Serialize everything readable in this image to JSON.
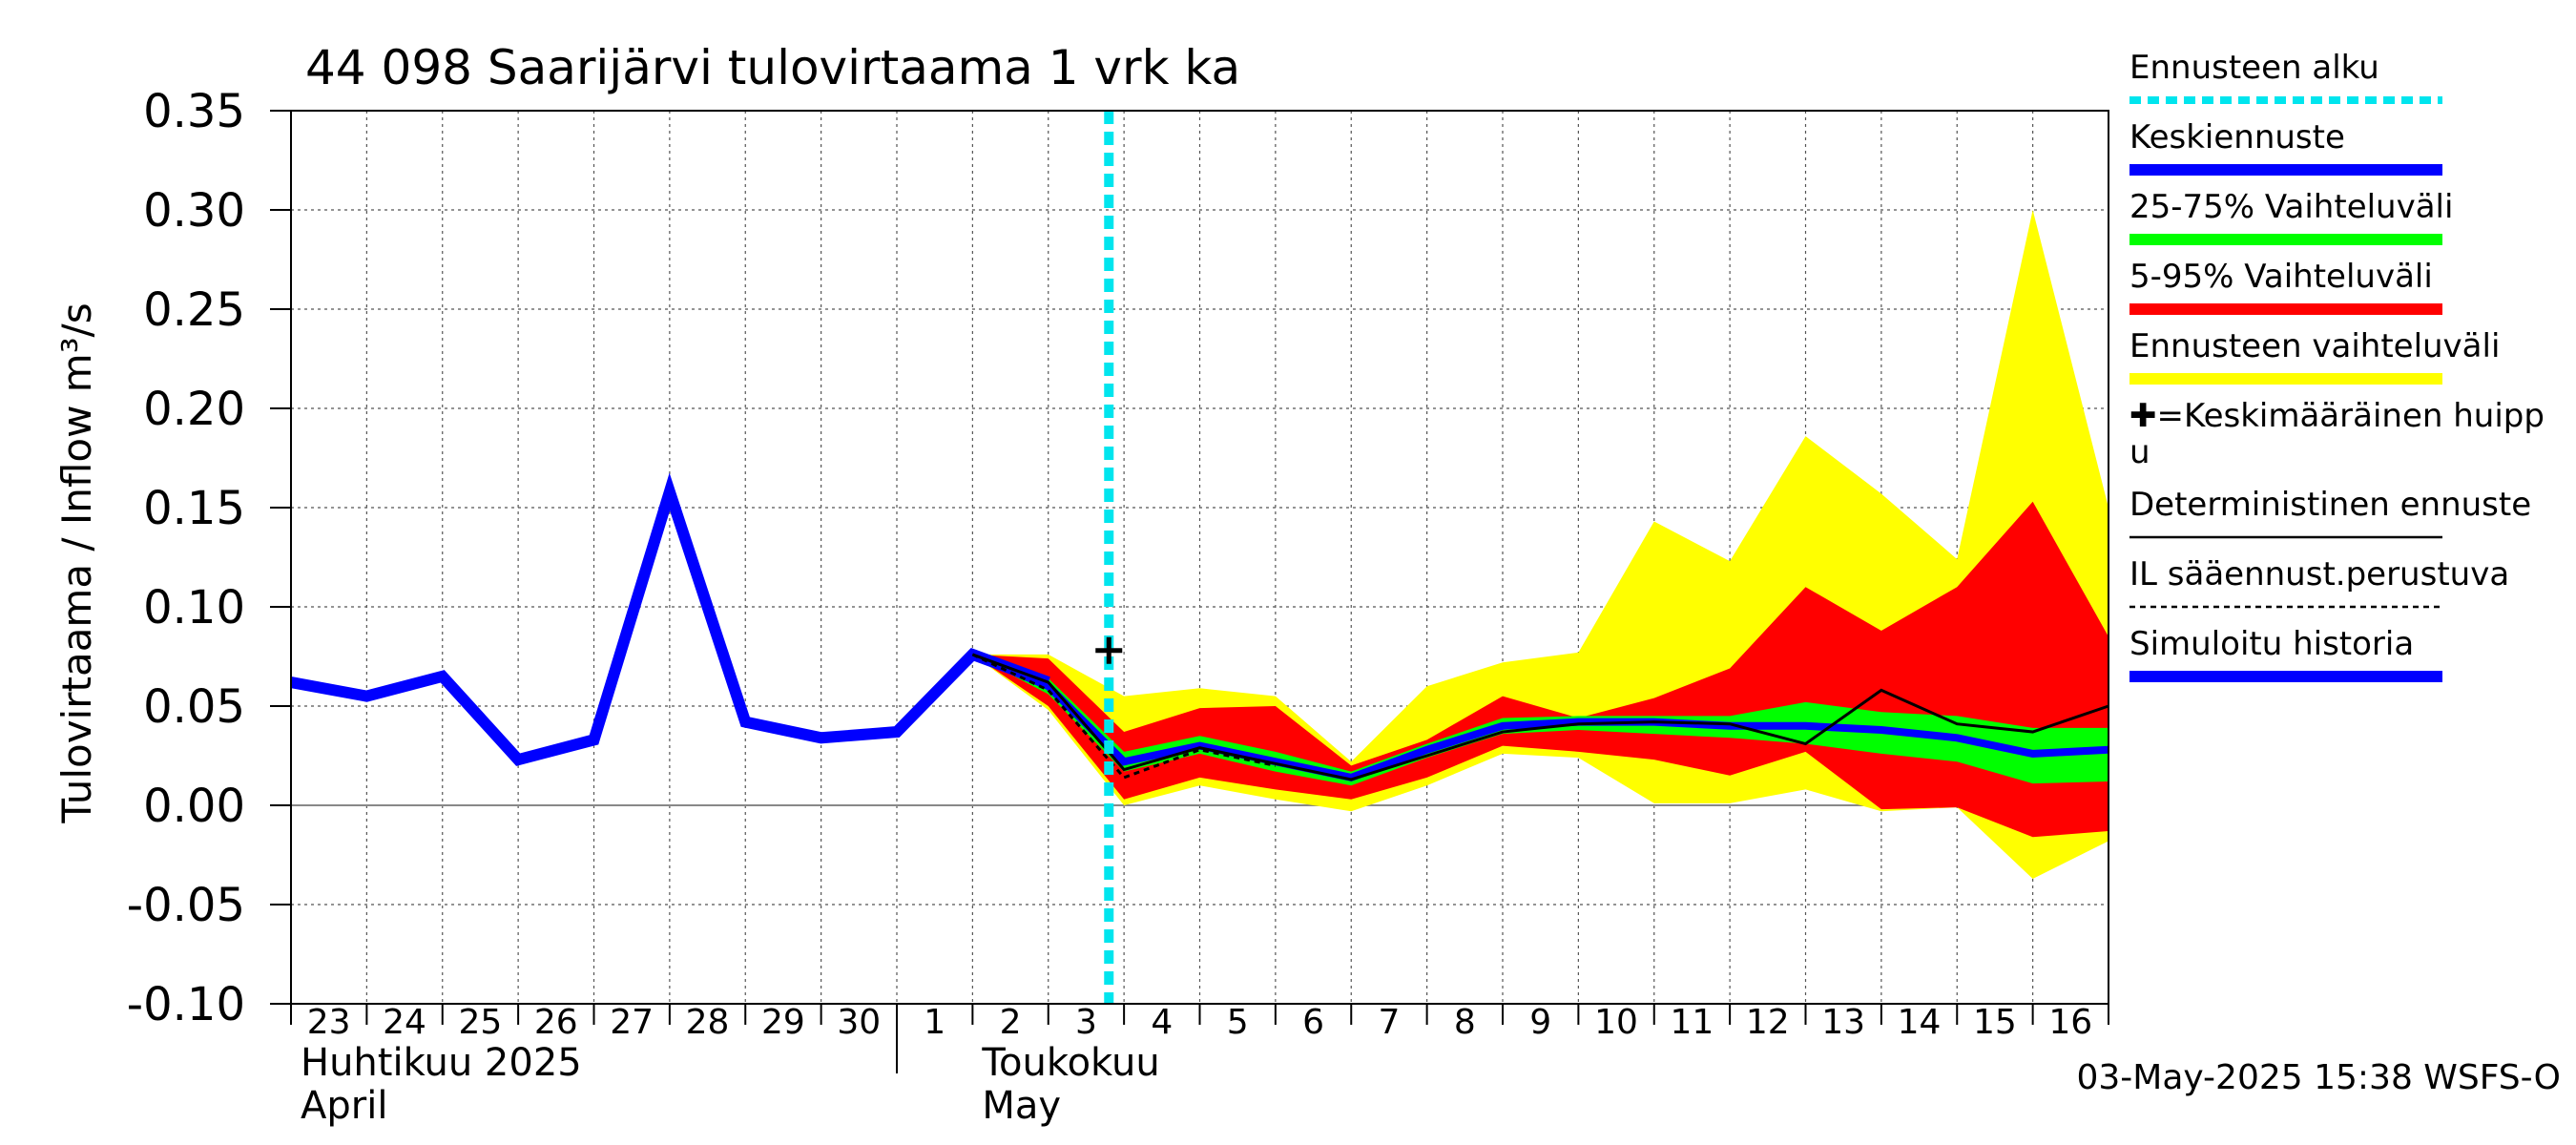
{
  "chart_data": {
    "type": "area",
    "title": "44 098 Saarijärvi tulovirtaama 1 vrk ka",
    "ylabel": "Tulovirtaama / Inflow   m³/s",
    "ylim": [
      -0.1,
      0.35
    ],
    "yticks": [
      -0.1,
      -0.05,
      0.0,
      0.05,
      0.1,
      0.15,
      0.2,
      0.25,
      0.3,
      0.35
    ],
    "ytick_labels": [
      "-0.10",
      "-0.05",
      "0.00",
      "0.05",
      "0.10",
      "0.15",
      "0.20",
      "0.25",
      "0.30",
      "0.35"
    ],
    "xlim": [
      0,
      24
    ],
    "day_labels": [
      "23",
      "24",
      "25",
      "26",
      "27",
      "28",
      "29",
      "30",
      "1",
      "2",
      "3",
      "4",
      "5",
      "6",
      "7",
      "8",
      "9",
      "10",
      "11",
      "12",
      "13",
      "14",
      "15",
      "16"
    ],
    "month_labels": [
      {
        "line1": "Huhtikuu  2025",
        "line2": "April",
        "x": 0
      },
      {
        "line1": "Toukokuu",
        "line2": "May",
        "x": 9
      }
    ],
    "month_boundary": 8,
    "forecast_start": 10.8,
    "grid": true,
    "series": [
      {
        "name": "Simuloitu historia",
        "color": "#0000ff",
        "x": [
          0,
          1,
          2,
          3,
          4,
          5,
          6,
          7,
          8,
          9,
          10
        ],
        "values": [
          0.062,
          0.055,
          0.065,
          0.023,
          0.033,
          0.158,
          0.042,
          0.034,
          0.037,
          0.076,
          0.062
        ]
      },
      {
        "name": "Keskiennuste",
        "color": "#0000ff",
        "x": [
          9,
          10,
          11,
          12,
          13,
          14,
          15,
          16,
          17,
          18,
          19,
          20,
          21,
          22,
          23,
          24
        ],
        "values": [
          0.076,
          0.06,
          0.022,
          0.03,
          0.022,
          0.014,
          0.028,
          0.04,
          0.042,
          0.042,
          0.04,
          0.04,
          0.038,
          0.034,
          0.026,
          0.028
        ]
      },
      {
        "name": "25-75% Vaihteluväli",
        "color": "#00ff00",
        "x": [
          9,
          10,
          11,
          12,
          13,
          14,
          15,
          16,
          17,
          18,
          19,
          20,
          21,
          22,
          23,
          24
        ],
        "upper": [
          0.076,
          0.064,
          0.027,
          0.035,
          0.027,
          0.017,
          0.031,
          0.044,
          0.045,
          0.045,
          0.045,
          0.052,
          0.047,
          0.045,
          0.039,
          0.039
        ],
        "lower": [
          0.076,
          0.056,
          0.017,
          0.026,
          0.017,
          0.01,
          0.024,
          0.036,
          0.038,
          0.036,
          0.034,
          0.031,
          0.026,
          0.022,
          0.011,
          0.012
        ]
      },
      {
        "name": "5-95% Vaihteluväli",
        "color": "#ff0000",
        "x": [
          9,
          10,
          11,
          12,
          13,
          14,
          15,
          16,
          17,
          18,
          19,
          20,
          21,
          22,
          23,
          24
        ],
        "upper": [
          0.076,
          0.074,
          0.037,
          0.049,
          0.05,
          0.02,
          0.033,
          0.055,
          0.044,
          0.054,
          0.069,
          0.11,
          0.088,
          0.11,
          0.153,
          0.085
        ],
        "lower": [
          0.076,
          0.05,
          0.003,
          0.014,
          0.008,
          0.003,
          0.014,
          0.03,
          0.027,
          0.023,
          0.015,
          0.027,
          -0.002,
          -0.001,
          -0.016,
          -0.013
        ]
      },
      {
        "name": "Ennusteen vaihteluväli",
        "color": "#ffff00",
        "x": [
          9,
          10,
          11,
          12,
          13,
          14,
          15,
          16,
          17,
          18,
          19,
          20,
          21,
          22,
          23,
          24
        ],
        "upper": [
          0.076,
          0.076,
          0.055,
          0.059,
          0.055,
          0.022,
          0.06,
          0.072,
          0.077,
          0.143,
          0.123,
          0.186,
          0.157,
          0.124,
          0.3,
          0.15
        ],
        "lower": [
          0.076,
          0.048,
          0.0,
          0.01,
          0.003,
          -0.003,
          0.01,
          0.026,
          0.024,
          0.001,
          0.001,
          0.008,
          -0.003,
          -0.001,
          -0.037,
          -0.018
        ]
      },
      {
        "name": "Deterministinen ennuste",
        "color": "#000000",
        "x": [
          9,
          10,
          11,
          12,
          13,
          14,
          15,
          16,
          17,
          18,
          19,
          20,
          21,
          22,
          23,
          24
        ],
        "values": [
          0.076,
          0.062,
          0.018,
          0.029,
          0.021,
          0.013,
          0.025,
          0.037,
          0.041,
          0.042,
          0.041,
          0.031,
          0.058,
          0.041,
          0.037,
          0.05
        ]
      },
      {
        "name": "IL sääennust.perustuva",
        "color": "#000000",
        "x": [
          9,
          10,
          11,
          12,
          13
        ],
        "values": [
          0.076,
          0.058,
          0.014,
          0.028,
          0.02
        ]
      }
    ],
    "peak_marker": {
      "x": 10.8,
      "value": 0.078
    }
  },
  "legend": {
    "items": [
      {
        "label": "Ennusteen alku",
        "color": "#00e5ee",
        "style": "dotted"
      },
      {
        "label": "Keskiennuste",
        "color": "#0000ff",
        "style": "thick"
      },
      {
        "label": "25-75% Vaihteluväli",
        "color": "#00ff00",
        "style": "thick"
      },
      {
        "label": "5-95% Vaihteluväli",
        "color": "#ff0000",
        "style": "thick"
      },
      {
        "label": "Ennusteen vaihteluväli",
        "color": "#ffff00",
        "style": "thick"
      },
      {
        "label": "✚=Keskimääräinen huipp",
        "label2": "u",
        "color": "",
        "style": "none"
      },
      {
        "label": "Deterministinen ennuste",
        "color": "#000000",
        "style": "thin"
      },
      {
        "label": "IL sääennust.perustuva",
        "color": "#000000",
        "style": "dashed"
      },
      {
        "label": "Simuloitu historia",
        "color": "#0000ff",
        "style": "thick"
      }
    ]
  },
  "footer": {
    "timestamp": "03-May-2025 15:38 WSFS-O"
  }
}
